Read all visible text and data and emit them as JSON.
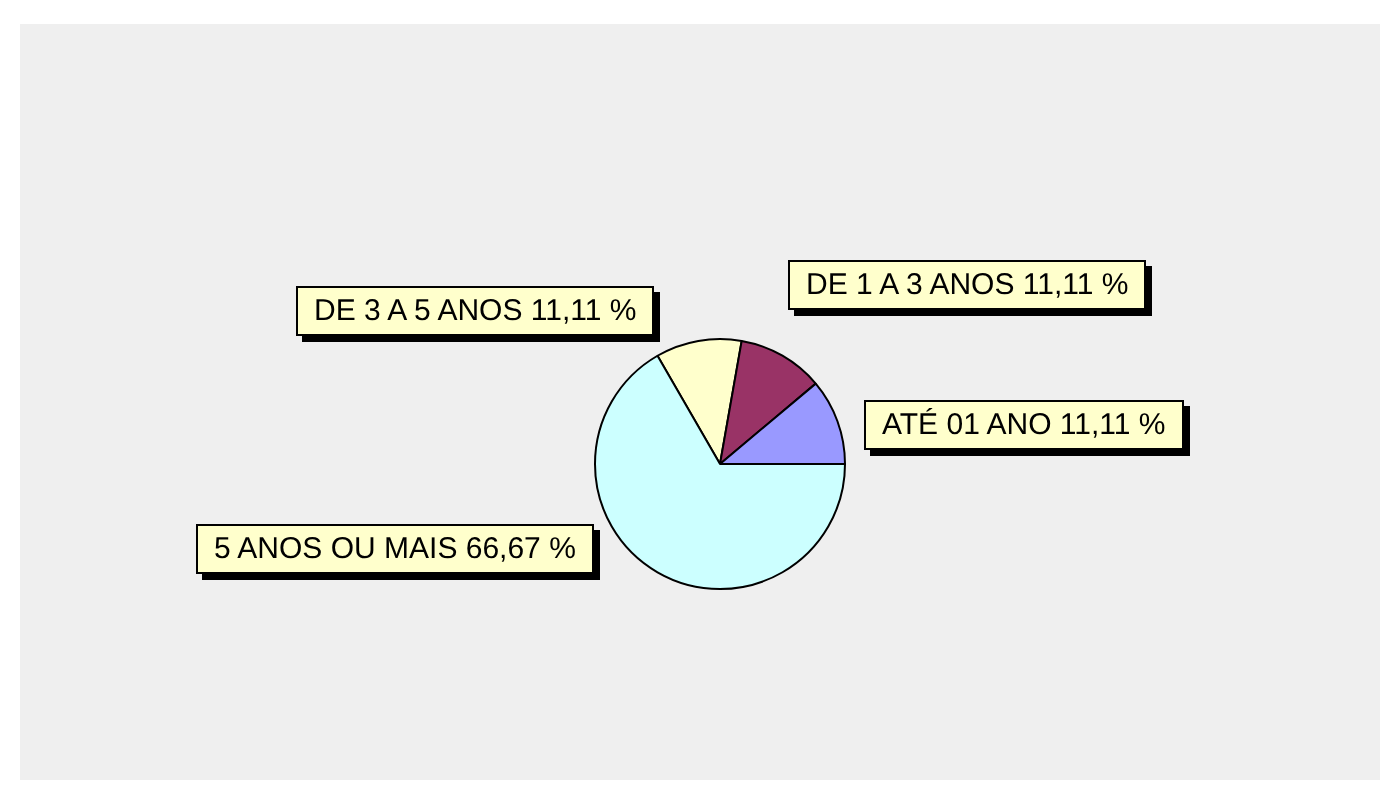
{
  "chart_data": {
    "type": "pie",
    "categories": [
      "DE 3 A 5 ANOS",
      "DE 1 A 3 ANOS",
      "ATÉ 01 ANO",
      "5 ANOS OU MAIS"
    ],
    "values": [
      11.11,
      11.11,
      11.11,
      66.67
    ],
    "value_labels": [
      "11,11 %",
      "11,11 %",
      "11,11 %",
      "66,67 %"
    ],
    "colors": [
      "#ffffcc",
      "#993366",
      "#9999ff",
      "#ccffff"
    ],
    "legend": false
  }
}
